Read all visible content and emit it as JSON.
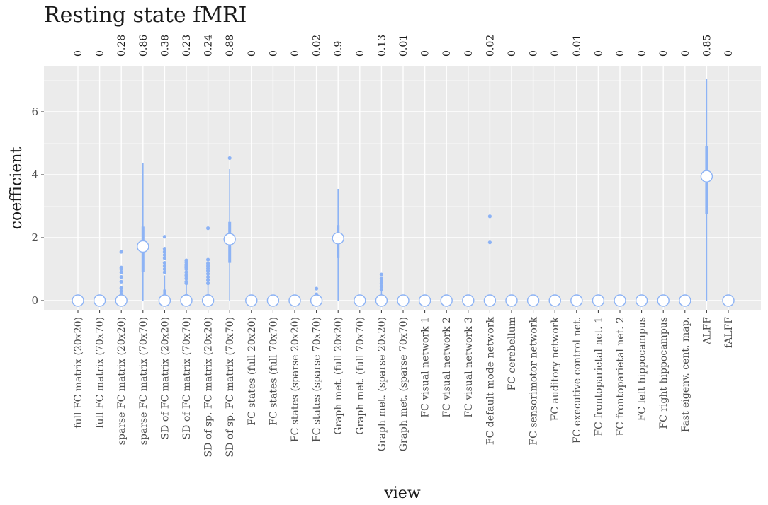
{
  "chart_data": {
    "type": "box",
    "title": "Resting state fMRI",
    "xlabel": "view",
    "ylabel": "coefficient",
    "ylim": [
      -0.4,
      7.25
    ],
    "yticks": [
      0,
      2,
      4,
      6
    ],
    "grid": true,
    "colors": {
      "series": "#8db3f5",
      "panel": "#ebebeb",
      "grid_major": "#ffffff",
      "grid_minor": "#f5f5f5"
    },
    "categories": [
      "full FC matrix (20x20)",
      "full FC matrix (70x70)",
      "sparse FC matrix (20x20)",
      "sparse FC matrix (70x70)",
      "SD of FC matrix (20x20)",
      "SD of FC matrix (70x70)",
      "SD of sp. FC matrix (20x20)",
      "SD of sp. FC matrix (70x70)",
      "FC states (full 20x20)",
      "FC states (full 70x70)",
      "FC states (sparse 20x20)",
      "FC states (sparse 70x70)",
      "Graph met. (full 20x20)",
      "Graph met. (full 70x70)",
      "Graph met. (sparse 20x20)",
      "Graph met. (sparse 70x70)",
      "FC visual network 1",
      "FC visual network 2",
      "FC visual network 3",
      "FC default mode network",
      "FC cerebellum",
      "FC sensorimotor network",
      "FC auditory network",
      "FC executive control net.",
      "FC frontoparietal net. 1",
      "FC frontoparietal net. 2",
      "FC left hippocampus",
      "FC right hippocampus",
      "Fast eigenv. cent. map.",
      "ALFF",
      "fALFF"
    ],
    "top_labels": [
      "0",
      "0",
      "0.28",
      "0.86",
      "0.38",
      "0.23",
      "0.24",
      "0.88",
      "0",
      "0",
      "0",
      "0.02",
      "0.9",
      "0",
      "0.13",
      "0.01",
      "0",
      "0",
      "0",
      "0.02",
      "0",
      "0",
      "0",
      "0.01",
      "0",
      "0",
      "0",
      "0",
      "0",
      "0.85",
      "0"
    ],
    "medians": [
      0,
      0,
      0,
      1.72,
      0,
      0,
      0,
      1.95,
      0,
      0,
      0,
      0,
      1.98,
      0,
      0,
      0,
      0,
      0,
      0,
      0,
      0,
      0,
      0,
      0,
      0,
      0,
      0,
      0,
      0,
      3.95,
      0
    ],
    "boxes": [
      null,
      null,
      null,
      {
        "q1": 0.9,
        "q3": 2.35,
        "min": 0,
        "max": 4.38
      },
      {
        "q1": 0,
        "q3": 0.35,
        "min": 0,
        "max": 0.8
      },
      {
        "q1": 0,
        "q3": 0.2,
        "min": 0,
        "max": 0.5
      },
      {
        "q1": 0,
        "q3": 0.2,
        "min": 0,
        "max": 0.5
      },
      {
        "q1": 1.2,
        "q3": 2.5,
        "min": 0,
        "max": 4.18
      },
      null,
      null,
      null,
      {
        "q1": 0,
        "q3": 0.05,
        "min": 0,
        "max": 0.1
      },
      {
        "q1": 1.35,
        "q3": 2.4,
        "min": 0,
        "max": 3.55
      },
      null,
      {
        "q1": 0,
        "q3": 0.15,
        "min": 0,
        "max": 0.3
      },
      null,
      null,
      null,
      null,
      null,
      null,
      null,
      null,
      null,
      null,
      null,
      null,
      null,
      null,
      {
        "q1": 2.75,
        "q3": 4.9,
        "min": 0,
        "max": 7.05
      },
      null
    ],
    "outliers": [
      [],
      [],
      [
        0.1,
        0.2,
        0.3,
        0.4,
        0.6,
        0.75,
        0.9,
        1.0,
        1.05,
        1.55
      ],
      [],
      [
        0.9,
        1.0,
        1.1,
        1.2,
        1.35,
        1.45,
        1.55,
        1.65,
        2.03
      ],
      [
        0.55,
        0.6,
        0.7,
        0.8,
        0.9,
        1.0,
        1.05,
        1.1,
        1.15,
        1.22,
        1.28
      ],
      [
        0.55,
        0.65,
        0.75,
        0.85,
        0.95,
        1.02,
        1.1,
        1.18,
        1.3,
        2.3
      ],
      [
        4.53
      ],
      [],
      [],
      [],
      [
        0.2,
        0.38
      ],
      [],
      [],
      [
        0.35,
        0.45,
        0.55,
        0.62,
        0.7,
        0.83
      ],
      [],
      [],
      [],
      [],
      [
        1.85,
        2.68
      ],
      [],
      [],
      [],
      [],
      [],
      [],
      [],
      [],
      [],
      [],
      []
    ]
  }
}
